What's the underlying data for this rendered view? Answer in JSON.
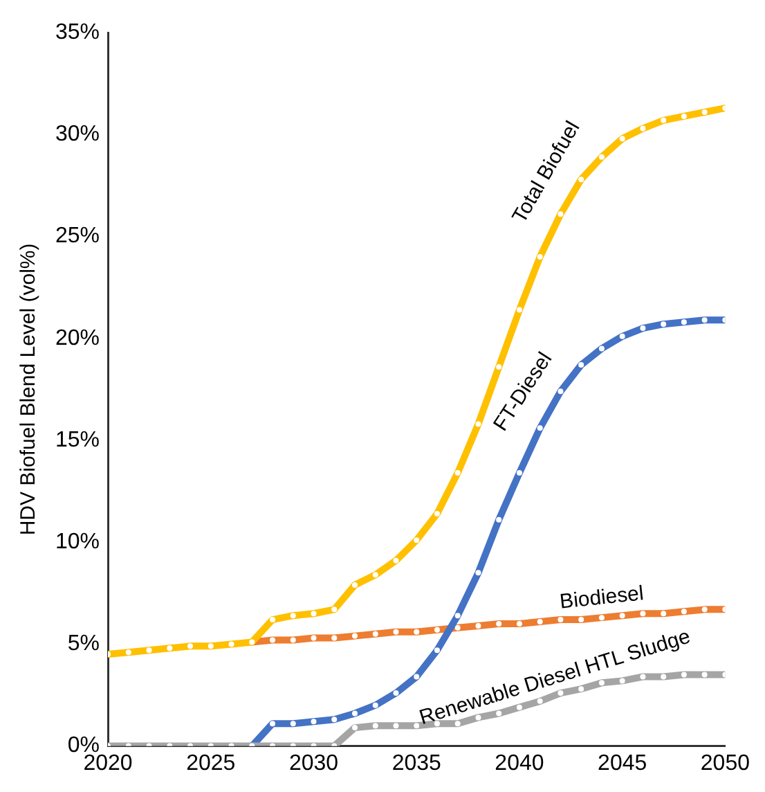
{
  "chart_data": {
    "type": "line",
    "ylabel": "HDV Biofuel Blend Level (vol%)",
    "x": [
      2020,
      2021,
      2022,
      2023,
      2024,
      2025,
      2026,
      2027,
      2028,
      2029,
      2030,
      2031,
      2032,
      2033,
      2034,
      2035,
      2036,
      2037,
      2038,
      2039,
      2040,
      2041,
      2042,
      2043,
      2044,
      2045,
      2046,
      2047,
      2048,
      2049,
      2050
    ],
    "xlim": [
      2020,
      2050
    ],
    "xticks": [
      2020,
      2025,
      2030,
      2035,
      2040,
      2045,
      2050
    ],
    "ylim": [
      0,
      35
    ],
    "yticks": [
      {
        "value": 0,
        "label": "0%"
      },
      {
        "value": 5,
        "label": "5%"
      },
      {
        "value": 10,
        "label": "10%"
      },
      {
        "value": 15,
        "label": "15%"
      },
      {
        "value": 20,
        "label": "20%"
      },
      {
        "value": 25,
        "label": "25%"
      },
      {
        "value": 30,
        "label": "30%"
      },
      {
        "value": 35,
        "label": "35%"
      }
    ],
    "grid": false,
    "legend": false,
    "marker": "circle",
    "line_style": "solid",
    "series": [
      {
        "name": "Total Biofuel",
        "color": "#ffc000",
        "values": [
          4.5,
          4.6,
          4.7,
          4.8,
          4.9,
          4.9,
          5.0,
          5.1,
          6.2,
          6.4,
          6.5,
          6.7,
          7.9,
          8.4,
          9.1,
          10.1,
          11.4,
          13.4,
          15.8,
          18.6,
          21.4,
          24.0,
          26.1,
          27.8,
          28.9,
          29.8,
          30.3,
          30.7,
          30.9,
          31.1,
          31.3
        ]
      },
      {
        "name": "Biodiesel",
        "color": "#ed7d31",
        "values": [
          null,
          null,
          null,
          null,
          null,
          null,
          null,
          5.1,
          5.2,
          5.2,
          5.3,
          5.3,
          5.4,
          5.5,
          5.6,
          5.6,
          5.7,
          5.8,
          5.9,
          6.0,
          6.0,
          6.1,
          6.2,
          6.2,
          6.3,
          6.4,
          6.5,
          6.5,
          6.6,
          6.7,
          6.7
        ]
      },
      {
        "name": "FT-Diesel",
        "color": "#4472c4",
        "values": [
          null,
          null,
          null,
          null,
          null,
          null,
          null,
          0,
          1.1,
          1.1,
          1.2,
          1.3,
          1.6,
          2.0,
          2.6,
          3.4,
          4.7,
          6.4,
          8.5,
          11.1,
          13.4,
          15.6,
          17.4,
          18.7,
          19.5,
          20.1,
          20.5,
          20.7,
          20.8,
          20.9,
          20.9
        ]
      },
      {
        "name": "Renewable Diesel HTL Sludge",
        "color": "#a5a5a5",
        "values": [
          0,
          0,
          0,
          0,
          0,
          0,
          0,
          0,
          0,
          0,
          0,
          0,
          0.9,
          1.0,
          1.0,
          1.0,
          1.1,
          1.1,
          1.4,
          1.6,
          1.9,
          2.2,
          2.6,
          2.8,
          3.1,
          3.2,
          3.4,
          3.4,
          3.5,
          3.5,
          3.5
        ]
      }
    ]
  }
}
